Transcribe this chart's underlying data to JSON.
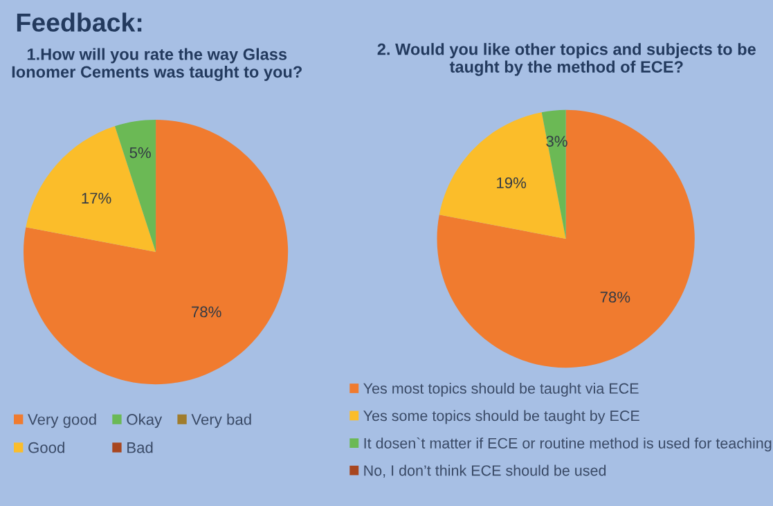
{
  "chart_data": [
    {
      "type": "pie",
      "title": "1.How will you rate the way Glass Ionomer Cements was taught to you?",
      "annotations": [
        "Feedback:"
      ],
      "categories": [
        "Very good",
        "Good",
        "Okay",
        "Bad",
        "Very bad"
      ],
      "values": [
        78,
        17,
        5,
        0,
        0
      ],
      "value_labels": [
        "78%",
        "17%",
        "5%",
        null,
        null
      ],
      "colors": [
        "#f07b2f",
        "#fbbd2a",
        "#6bb955",
        "#a8461f",
        "#a07c2c"
      ],
      "legend": "bottom"
    },
    {
      "type": "pie",
      "title": "2. Would you like other topics and subjects to be taught by the method of ECE?",
      "categories": [
        "Yes most topics should be taught via ECE",
        "Yes some topics should be taught by ECE",
        "It dosen`t matter if ECE or routine method is used for teaching",
        "No, I don’t think ECE should be used"
      ],
      "values": [
        78,
        19,
        3,
        0
      ],
      "value_labels": [
        "78%",
        "19%",
        "3%",
        null
      ],
      "colors": [
        "#f07b2f",
        "#fbbd2a",
        "#6bb955",
        "#a8461f"
      ],
      "legend": "bottom"
    }
  ]
}
